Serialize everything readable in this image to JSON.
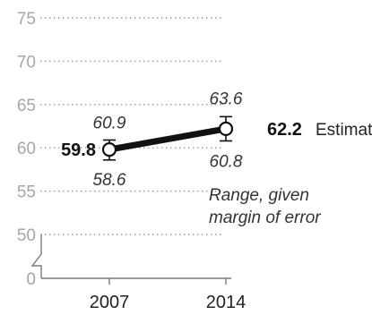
{
  "chart_data": {
    "type": "line",
    "title": "",
    "xlabel": "",
    "ylabel": "",
    "ylim": [
      0,
      75
    ],
    "y_axis_break": [
      0,
      50
    ],
    "y_ticks": [
      0,
      50,
      55,
      60,
      65,
      70,
      75
    ],
    "grid": true,
    "categories": [
      "2007",
      "2014"
    ],
    "series": [
      {
        "values": [
          59.8,
          62.2
        ],
        "error_low": [
          58.6,
          60.8
        ],
        "error_high": [
          60.9,
          63.6
        ],
        "value_labels": [
          "59.8",
          "62.2"
        ],
        "low_labels": [
          "58.6",
          "60.8"
        ],
        "high_labels": [
          "60.9",
          "63.6"
        ]
      }
    ],
    "legend": {
      "estimate": "Estimate",
      "range_line1": "Range, given",
      "range_line2": "margin of error"
    },
    "colors": {
      "line": "#111111",
      "grid": "#9a9a9a",
      "tick": "#a6a6a6",
      "marker_fill": "#ffffff"
    }
  }
}
